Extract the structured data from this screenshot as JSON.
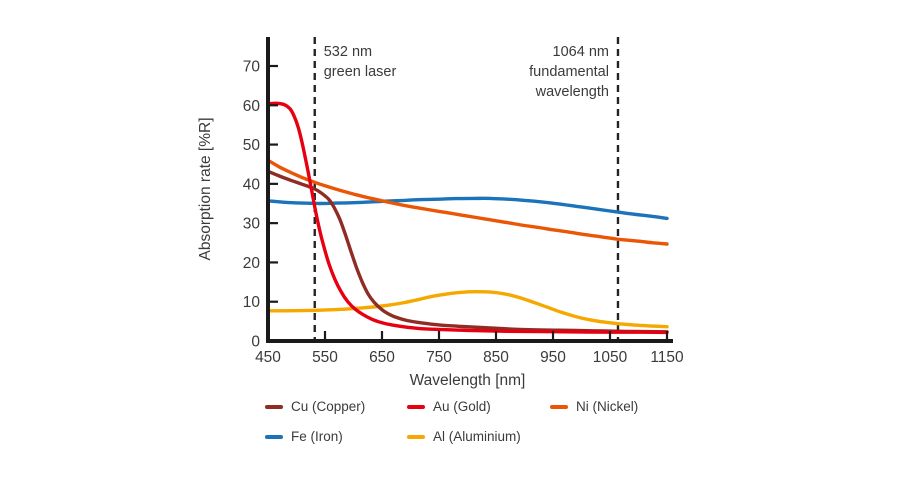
{
  "chart_data": {
    "type": "line",
    "title": "",
    "xlabel": "Wavelength [nm]",
    "ylabel": "Absorption rate [%R]",
    "xlim": [
      450,
      1150
    ],
    "ylim": [
      0,
      76
    ],
    "x_ticks": [
      450,
      550,
      650,
      750,
      850,
      950,
      1050,
      1150
    ],
    "y_ticks": [
      0,
      10,
      20,
      30,
      40,
      50,
      60,
      70
    ],
    "grid": false,
    "legend_position": "bottom",
    "axis_color": "#1a1a1a",
    "text_color": "#3b3b3b",
    "dashed_line_color": "#242424",
    "annotations": [
      {
        "x": 532,
        "lines": [
          "532 nm",
          "green laser"
        ],
        "text_side": "right"
      },
      {
        "x": 1064,
        "lines": [
          "1064 nm",
          "fundamental",
          "wavelength"
        ],
        "text_side": "left"
      }
    ],
    "series": [
      {
        "name": "Cu (Copper)",
        "color": "#8f2d24",
        "points": [
          [
            450,
            43.2
          ],
          [
            470,
            42.0
          ],
          [
            490,
            40.9
          ],
          [
            510,
            39.9
          ],
          [
            532,
            38.7
          ],
          [
            545,
            37.5
          ],
          [
            557,
            36.0
          ],
          [
            566,
            34.0
          ],
          [
            576,
            31.0
          ],
          [
            586,
            27.0
          ],
          [
            596,
            22.6
          ],
          [
            606,
            18.4
          ],
          [
            616,
            14.8
          ],
          [
            626,
            11.9
          ],
          [
            636,
            9.9
          ],
          [
            648,
            8.2
          ],
          [
            660,
            7.0
          ],
          [
            675,
            6.0
          ],
          [
            695,
            5.2
          ],
          [
            720,
            4.6
          ],
          [
            750,
            4.1
          ],
          [
            790,
            3.7
          ],
          [
            840,
            3.3
          ],
          [
            900,
            2.9
          ],
          [
            960,
            2.75
          ],
          [
            1020,
            2.6
          ],
          [
            1080,
            2.45
          ],
          [
            1150,
            2.35
          ]
        ]
      },
      {
        "name": "Au (Gold)",
        "color": "#e60012",
        "points": [
          [
            450,
            60.4
          ],
          [
            464,
            60.5
          ],
          [
            478,
            60.2
          ],
          [
            488,
            59.2
          ],
          [
            496,
            57.2
          ],
          [
            503,
            54.4
          ],
          [
            509,
            51.0
          ],
          [
            515,
            47.0
          ],
          [
            521,
            42.6
          ],
          [
            527,
            38.0
          ],
          [
            533,
            33.4
          ],
          [
            540,
            28.6
          ],
          [
            548,
            24.0
          ],
          [
            557,
            19.6
          ],
          [
            567,
            15.8
          ],
          [
            578,
            12.6
          ],
          [
            590,
            10.0
          ],
          [
            603,
            8.1
          ],
          [
            617,
            6.7
          ],
          [
            633,
            5.5
          ],
          [
            651,
            4.6
          ],
          [
            671,
            4.0
          ],
          [
            695,
            3.5
          ],
          [
            723,
            3.1
          ],
          [
            757,
            2.9
          ],
          [
            800,
            2.7
          ],
          [
            860,
            2.5
          ],
          [
            930,
            2.4
          ],
          [
            1010,
            2.3
          ],
          [
            1080,
            2.25
          ],
          [
            1150,
            2.2
          ]
        ]
      },
      {
        "name": "Ni (Nickel)",
        "color": "#ea5506",
        "points": [
          [
            450,
            46.0
          ],
          [
            470,
            44.3
          ],
          [
            490,
            42.9
          ],
          [
            510,
            41.6
          ],
          [
            532,
            40.4
          ],
          [
            550,
            39.5
          ],
          [
            575,
            38.4
          ],
          [
            600,
            37.4
          ],
          [
            625,
            36.5
          ],
          [
            650,
            35.7
          ],
          [
            675,
            34.9
          ],
          [
            700,
            34.2
          ],
          [
            725,
            33.6
          ],
          [
            750,
            33.0
          ],
          [
            775,
            32.4
          ],
          [
            800,
            31.8
          ],
          [
            825,
            31.2
          ],
          [
            850,
            30.6
          ],
          [
            875,
            30.0
          ],
          [
            900,
            29.4
          ],
          [
            925,
            28.9
          ],
          [
            950,
            28.3
          ],
          [
            975,
            27.8
          ],
          [
            1000,
            27.2
          ],
          [
            1025,
            26.7
          ],
          [
            1050,
            26.2
          ],
          [
            1064,
            25.9
          ],
          [
            1100,
            25.4
          ],
          [
            1125,
            25.0
          ],
          [
            1150,
            24.7
          ]
        ]
      },
      {
        "name": "Fe (Iron)",
        "color": "#1d73b9",
        "points": [
          [
            450,
            35.7
          ],
          [
            480,
            35.3
          ],
          [
            510,
            35.1
          ],
          [
            540,
            35.0
          ],
          [
            570,
            35.1
          ],
          [
            600,
            35.2
          ],
          [
            630,
            35.4
          ],
          [
            660,
            35.6
          ],
          [
            690,
            35.8
          ],
          [
            720,
            36.0
          ],
          [
            750,
            36.1
          ],
          [
            780,
            36.25
          ],
          [
            810,
            36.3
          ],
          [
            840,
            36.3
          ],
          [
            870,
            36.1
          ],
          [
            900,
            35.8
          ],
          [
            930,
            35.4
          ],
          [
            960,
            34.9
          ],
          [
            990,
            34.3
          ],
          [
            1020,
            33.7
          ],
          [
            1050,
            33.1
          ],
          [
            1064,
            32.8
          ],
          [
            1090,
            32.3
          ],
          [
            1120,
            31.8
          ],
          [
            1150,
            31.2
          ]
        ]
      },
      {
        "name": "Al (Aluminium)",
        "color": "#f5a800",
        "points": [
          [
            450,
            7.7
          ],
          [
            480,
            7.7
          ],
          [
            510,
            7.75
          ],
          [
            540,
            7.85
          ],
          [
            570,
            8.0
          ],
          [
            600,
            8.25
          ],
          [
            630,
            8.6
          ],
          [
            660,
            9.1
          ],
          [
            690,
            9.8
          ],
          [
            715,
            10.6
          ],
          [
            740,
            11.4
          ],
          [
            765,
            12.0
          ],
          [
            790,
            12.4
          ],
          [
            815,
            12.55
          ],
          [
            840,
            12.45
          ],
          [
            865,
            12.0
          ],
          [
            890,
            11.1
          ],
          [
            915,
            9.9
          ],
          [
            940,
            8.6
          ],
          [
            965,
            7.3
          ],
          [
            990,
            6.2
          ],
          [
            1015,
            5.4
          ],
          [
            1040,
            4.8
          ],
          [
            1064,
            4.4
          ],
          [
            1090,
            4.1
          ],
          [
            1120,
            3.85
          ],
          [
            1150,
            3.65
          ]
        ]
      }
    ]
  }
}
